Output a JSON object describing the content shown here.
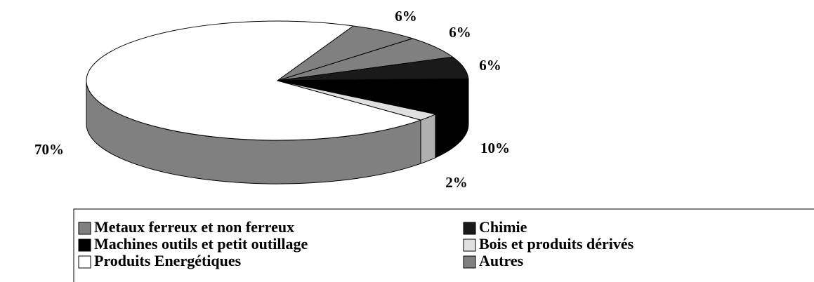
{
  "chart_data": {
    "type": "pie3d",
    "series": [
      {
        "name": "Metaux ferreux et non ferreux",
        "color": "#808080",
        "side_color": "#606060",
        "value": 6,
        "value_label": "6%"
      },
      {
        "name": "Chimie",
        "color": "#1a1a1a",
        "side_color": "#000000",
        "value": 6,
        "value_label": "6%"
      },
      {
        "name": "Machines outils et petit outillage",
        "color": "#000000",
        "side_color": "#000000",
        "value": 10,
        "value_label": "10%"
      },
      {
        "name": "Bois et produits dérivés",
        "color": "#e0e0e0",
        "side_color": "#b0b0b0",
        "value": 2,
        "value_label": "2%"
      },
      {
        "name": "Produits Energétiques",
        "color": "#ffffff",
        "side_color": "#808080",
        "value": 70,
        "value_label": "70%"
      },
      {
        "name": "Autres",
        "color": "#808080",
        "side_color": "#606060",
        "value": 6,
        "value_label": "6%"
      }
    ],
    "legend": "bottom"
  }
}
